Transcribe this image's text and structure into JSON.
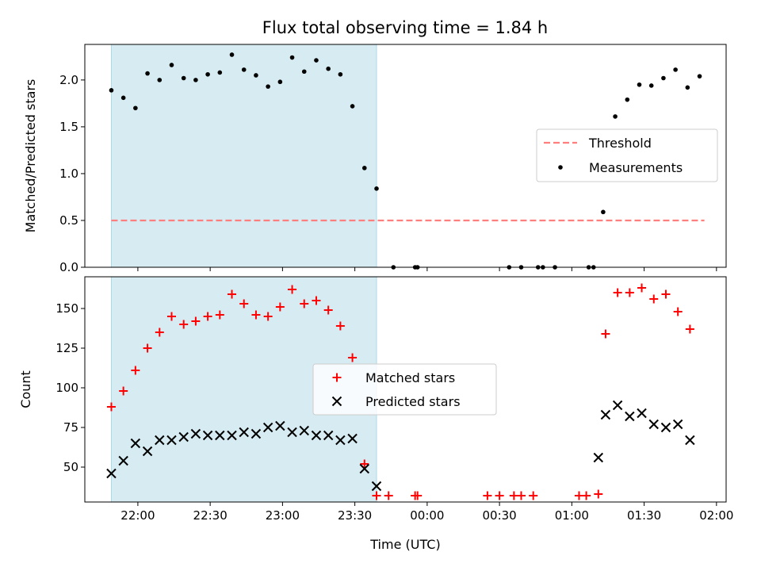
{
  "figure": {
    "title": "Flux total observing time = 1.84 h"
  },
  "colors": {
    "shade": "#add8e6",
    "threshold": "#ff7f7f",
    "matched": "#ff0000",
    "predicted": "#000000",
    "measurements": "#000000"
  },
  "chart_data": [
    {
      "type": "scatter",
      "panel": "top",
      "ylabel": "Matched/Predicted stars",
      "xlabel": "",
      "ylim": [
        0,
        2.38
      ],
      "yticks": [
        "0.0",
        "0.5",
        "1.0",
        "1.5",
        "2.0"
      ],
      "xticks": [
        "22:00",
        "22:30",
        "23:00",
        "23:30",
        "00:00",
        "00:30",
        "01:00",
        "01:30",
        "02:00"
      ],
      "xlim": [
        "21:38",
        "02:04"
      ],
      "shaded_region": [
        "21:49",
        "23:39"
      ],
      "legend": {
        "placement": "center-right",
        "entries": [
          "Threshold",
          "Measurements"
        ]
      },
      "threshold": {
        "name": "Threshold",
        "value": 0.5,
        "x_range": [
          "21:49",
          "01:55"
        ]
      },
      "series": [
        {
          "name": "Measurements",
          "points": [
            [
              "21:49",
              1.89
            ],
            [
              "21:54",
              1.81
            ],
            [
              "21:59",
              1.7
            ],
            [
              "22:04",
              2.07
            ],
            [
              "22:09",
              2.0
            ],
            [
              "22:14",
              2.16
            ],
            [
              "22:19",
              2.02
            ],
            [
              "22:24",
              2.0
            ],
            [
              "22:29",
              2.06
            ],
            [
              "22:34",
              2.08
            ],
            [
              "22:39",
              2.27
            ],
            [
              "22:44",
              2.11
            ],
            [
              "22:49",
              2.05
            ],
            [
              "22:54",
              1.93
            ],
            [
              "22:59",
              1.98
            ],
            [
              "23:04",
              2.24
            ],
            [
              "23:09",
              2.09
            ],
            [
              "23:14",
              2.21
            ],
            [
              "23:19",
              2.12
            ],
            [
              "23:24",
              2.06
            ],
            [
              "23:29",
              1.72
            ],
            [
              "23:34",
              1.06
            ],
            [
              "23:39",
              0.84
            ],
            [
              "23:46",
              0.0
            ],
            [
              "23:55",
              0.0
            ],
            [
              "23:56",
              0.0
            ],
            [
              "00:34",
              0.0
            ],
            [
              "00:39",
              0.0
            ],
            [
              "00:46",
              0.0
            ],
            [
              "00:48",
              0.0
            ],
            [
              "00:53",
              0.0
            ],
            [
              "01:07",
              0.0
            ],
            [
              "01:09",
              0.0
            ],
            [
              "01:13",
              0.59
            ],
            [
              "01:18",
              1.61
            ],
            [
              "01:23",
              1.79
            ],
            [
              "01:28",
              1.95
            ],
            [
              "01:33",
              1.94
            ],
            [
              "01:38",
              2.02
            ],
            [
              "01:43",
              2.11
            ],
            [
              "01:48",
              1.92
            ],
            [
              "01:53",
              2.04
            ]
          ]
        }
      ]
    },
    {
      "type": "scatter",
      "panel": "bottom",
      "ylabel": "Count",
      "xlabel": "Time (UTC)",
      "ylim": [
        28,
        170
      ],
      "yticks": [
        "50",
        "75",
        "100",
        "125",
        "150"
      ],
      "xticks": [
        "22:00",
        "22:30",
        "23:00",
        "23:30",
        "00:00",
        "00:30",
        "01:00",
        "01:30",
        "02:00"
      ],
      "xlim": [
        "21:38",
        "02:04"
      ],
      "shaded_region": [
        "21:49",
        "23:39"
      ],
      "legend": {
        "placement": "center",
        "entries": [
          "Matched stars",
          "Predicted stars"
        ]
      },
      "series": [
        {
          "name": "Matched stars",
          "marker": "+",
          "points": [
            [
              "21:49",
              88
            ],
            [
              "21:54",
              98
            ],
            [
              "21:59",
              111
            ],
            [
              "22:04",
              125
            ],
            [
              "22:09",
              135
            ],
            [
              "22:14",
              145
            ],
            [
              "22:19",
              140
            ],
            [
              "22:24",
              142
            ],
            [
              "22:29",
              145
            ],
            [
              "22:34",
              146
            ],
            [
              "22:39",
              159
            ],
            [
              "22:44",
              153
            ],
            [
              "22:49",
              146
            ],
            [
              "22:54",
              145
            ],
            [
              "22:59",
              151
            ],
            [
              "23:04",
              162
            ],
            [
              "23:09",
              153
            ],
            [
              "23:14",
              155
            ],
            [
              "23:19",
              149
            ],
            [
              "23:24",
              139
            ],
            [
              "23:29",
              119
            ],
            [
              "23:34",
              52
            ],
            [
              "23:39",
              32
            ],
            [
              "23:44",
              32
            ],
            [
              "23:55",
              32
            ],
            [
              "23:56",
              32
            ],
            [
              "00:25",
              32
            ],
            [
              "00:30",
              32
            ],
            [
              "00:36",
              32
            ],
            [
              "00:39",
              32
            ],
            [
              "00:44",
              32
            ],
            [
              "01:03",
              32
            ],
            [
              "01:06",
              32
            ],
            [
              "01:11",
              33
            ],
            [
              "01:14",
              134
            ],
            [
              "01:19",
              160
            ],
            [
              "01:24",
              160
            ],
            [
              "01:29",
              163
            ],
            [
              "01:34",
              156
            ],
            [
              "01:39",
              159
            ],
            [
              "01:44",
              148
            ],
            [
              "01:49",
              137
            ]
          ]
        },
        {
          "name": "Predicted stars",
          "marker": "x",
          "points": [
            [
              "21:49",
              46
            ],
            [
              "21:54",
              54
            ],
            [
              "21:59",
              65
            ],
            [
              "22:04",
              60
            ],
            [
              "22:09",
              67
            ],
            [
              "22:14",
              67
            ],
            [
              "22:19",
              69
            ],
            [
              "22:24",
              71
            ],
            [
              "22:29",
              70
            ],
            [
              "22:34",
              70
            ],
            [
              "22:39",
              70
            ],
            [
              "22:44",
              72
            ],
            [
              "22:49",
              71
            ],
            [
              "22:54",
              75
            ],
            [
              "22:59",
              76
            ],
            [
              "23:04",
              72
            ],
            [
              "23:09",
              73
            ],
            [
              "23:14",
              70
            ],
            [
              "23:19",
              70
            ],
            [
              "23:24",
              67
            ],
            [
              "23:29",
              68
            ],
            [
              "23:34",
              49
            ],
            [
              "23:39",
              38
            ],
            [
              "01:11",
              56
            ],
            [
              "01:14",
              83
            ],
            [
              "01:19",
              89
            ],
            [
              "01:24",
              82
            ],
            [
              "01:29",
              84
            ],
            [
              "01:34",
              77
            ],
            [
              "01:39",
              75
            ],
            [
              "01:44",
              77
            ],
            [
              "01:49",
              67
            ]
          ]
        }
      ]
    }
  ]
}
